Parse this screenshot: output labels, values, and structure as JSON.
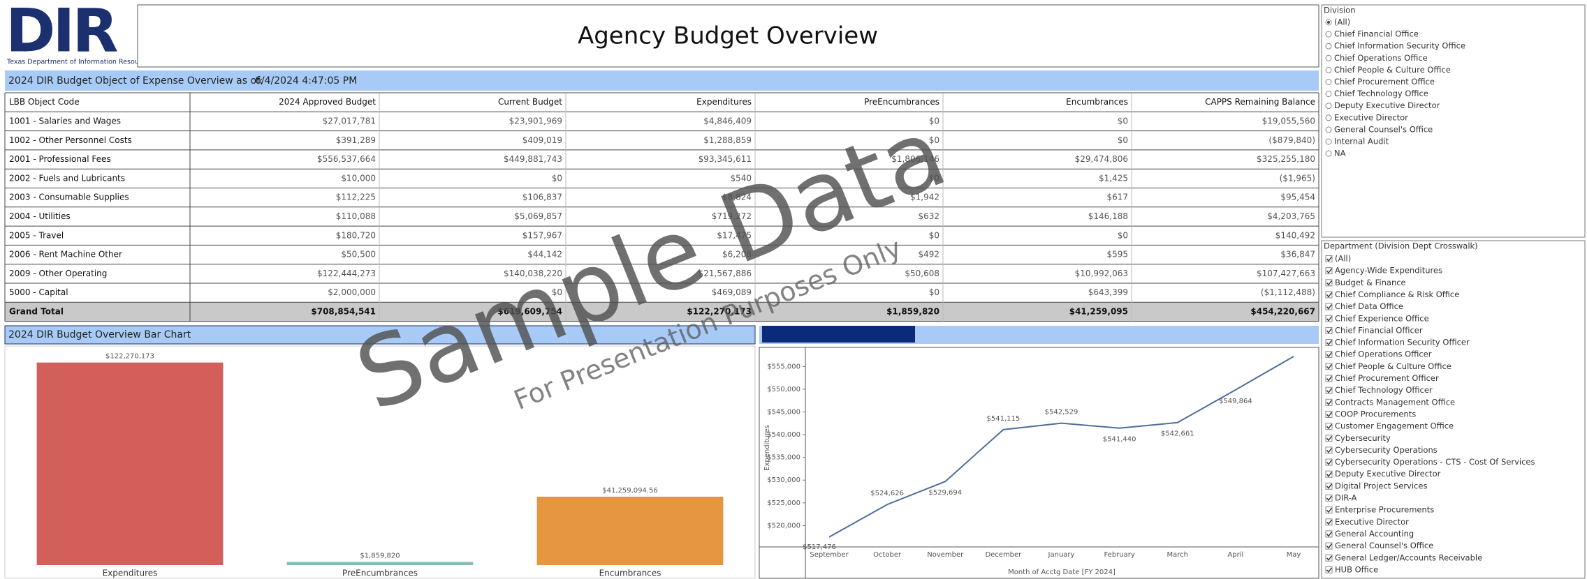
{
  "header": {
    "logo_text": "DIR",
    "logo_caption": "Texas Department of Information Resources",
    "title": "Agency Budget Overview"
  },
  "table": {
    "heading_label": "2024 DIR Budget Object of Expense Overview as of:",
    "heading_date": "6/4/2024 4:47:05 PM",
    "columns": [
      "LBB Object Code",
      "2024 Approved Budget",
      "Current Budget",
      "Expenditures",
      "PreEncumbrances",
      "Encumbrances",
      "CAPPS Remaining Balance"
    ],
    "rows": [
      [
        "1001 - Salaries and Wages",
        "$27,017,781",
        "$23,901,969",
        "$4,846,409",
        "$0",
        "$0",
        "$19,055,560"
      ],
      [
        "1002 - Other Personnel Costs",
        "$391,289",
        "$409,019",
        "$1,288,859",
        "$0",
        "$0",
        "($879,840)"
      ],
      [
        "2001 - Professional Fees",
        "$556,537,664",
        "$449,881,743",
        "$93,345,611",
        "$1,806,146",
        "$29,474,806",
        "$325,255,180"
      ],
      [
        "2002 - Fuels and Lubricants",
        "$10,000",
        "$0",
        "$540",
        "$0",
        "$1,425",
        "($1,965)"
      ],
      [
        "2003 - Consumable Supplies",
        "$112,225",
        "$106,837",
        "$8,824",
        "$1,942",
        "$617",
        "$95,454"
      ],
      [
        "2004 - Utilities",
        "$110,088",
        "$5,069,857",
        "$719,272",
        "$632",
        "$146,188",
        "$4,203,765"
      ],
      [
        "2005 - Travel",
        "$180,720",
        "$157,967",
        "$17,475",
        "$0",
        "$0",
        "$140,492"
      ],
      [
        "2006 - Rent Machine Other",
        "$50,500",
        "$44,142",
        "$6,208",
        "$492",
        "$595",
        "$36,847"
      ],
      [
        "2009 - Other Operating",
        "$122,444,273",
        "$140,038,220",
        "$21,567,886",
        "$50,608",
        "$10,992,063",
        "$107,427,663"
      ],
      [
        "5000 - Capital",
        "$2,000,000",
        "$0",
        "$469,089",
        "$0",
        "$643,399",
        "($1,112,488)"
      ]
    ],
    "total": [
      "Grand Total",
      "$708,854,541",
      "$619,609,754",
      "$122,270,173",
      "$1,859,820",
      "$41,259,095",
      "$454,220,667"
    ]
  },
  "watermark": {
    "main": "Sample Data",
    "sub": "For Presentation Purposes Only"
  },
  "filters": {
    "division": {
      "title": "Division",
      "selected": 0,
      "options": [
        "(All)",
        "Chief Financial Office",
        "Chief Information Security Office",
        "Chief Operations Office",
        "Chief People & Culture Office",
        "Chief Procurement Office",
        "Chief Technology Office",
        "Deputy Executive Director",
        "Executive Director",
        "General Counsel's Office",
        "Internal Audit",
        "NA"
      ]
    },
    "department": {
      "title": "Department (Division Dept Crosswalk)",
      "checked": true,
      "options": [
        "(All)",
        "Agency-Wide Expenditures",
        "Budget & Finance",
        "Chief Compliance & Risk Office",
        "Chief Data Office",
        "Chief Experience Office",
        "Chief Financial Officer",
        "Chief Information Security Officer",
        "Chief Operations Officer",
        "Chief People & Culture Office",
        "Chief Procurement Officer",
        "Chief Technology Officer",
        "Contracts Management Office",
        "COOP Procurements",
        "Customer Engagement Office",
        "Cybersecurity",
        "Cybersecurity Operations",
        "Cybersecurity Operations - CTS - Cost Of Services",
        "Deputy Executive Director",
        "Digital Project Services",
        "DIR-A",
        "Enterprise Procurements",
        "Executive Director",
        "General Accounting",
        "General Counsel's Office",
        "General Ledger/Accounts Receivable",
        "HUB Office"
      ]
    }
  },
  "chart_data": [
    {
      "type": "bar",
      "title": "2024 DIR Budget Overview Bar Chart",
      "categories": [
        "Expenditures",
        "PreEncumbrances",
        "Encumbrances"
      ],
      "values": [
        122270173,
        1859820,
        41259094.56
      ],
      "value_labels": [
        "$122,270,173",
        "$1,859,820",
        "$41,259,094.56"
      ],
      "colors": [
        "#d35f5a",
        "#86bcb6",
        "#e69540"
      ],
      "ylim": [
        0,
        131400000
      ]
    },
    {
      "type": "line",
      "categories": [
        "September",
        "October",
        "November",
        "December",
        "January",
        "February",
        "March",
        "April",
        "May"
      ],
      "values": [
        517476,
        524626,
        529694,
        541115,
        542529,
        541440,
        542661,
        549864,
        557200
      ],
      "value_labels": [
        "$517,476",
        "$524,626",
        "$529,694",
        "$541,115",
        "$542,529",
        "$541,440",
        "$542,661",
        "$549,864",
        null
      ],
      "color": "#4e6e9a",
      "ylim": [
        515300,
        559200
      ],
      "yticks": [
        {
          "value": 520000,
          "label": "$520,000"
        },
        {
          "value": 525000,
          "label": "$525,000"
        },
        {
          "value": 530000,
          "label": "$530,000"
        },
        {
          "value": 535000,
          "label": "$535,000"
        },
        {
          "value": 540000,
          "label": "$540,000"
        },
        {
          "value": 545000,
          "label": "$545,000"
        },
        {
          "value": 550000,
          "label": "$550,000"
        },
        {
          "value": 555000,
          "label": "$555,000"
        }
      ],
      "y_label": "Expenditures",
      "x_label": "Month of Acctg Date [FY 2024]"
    }
  ]
}
